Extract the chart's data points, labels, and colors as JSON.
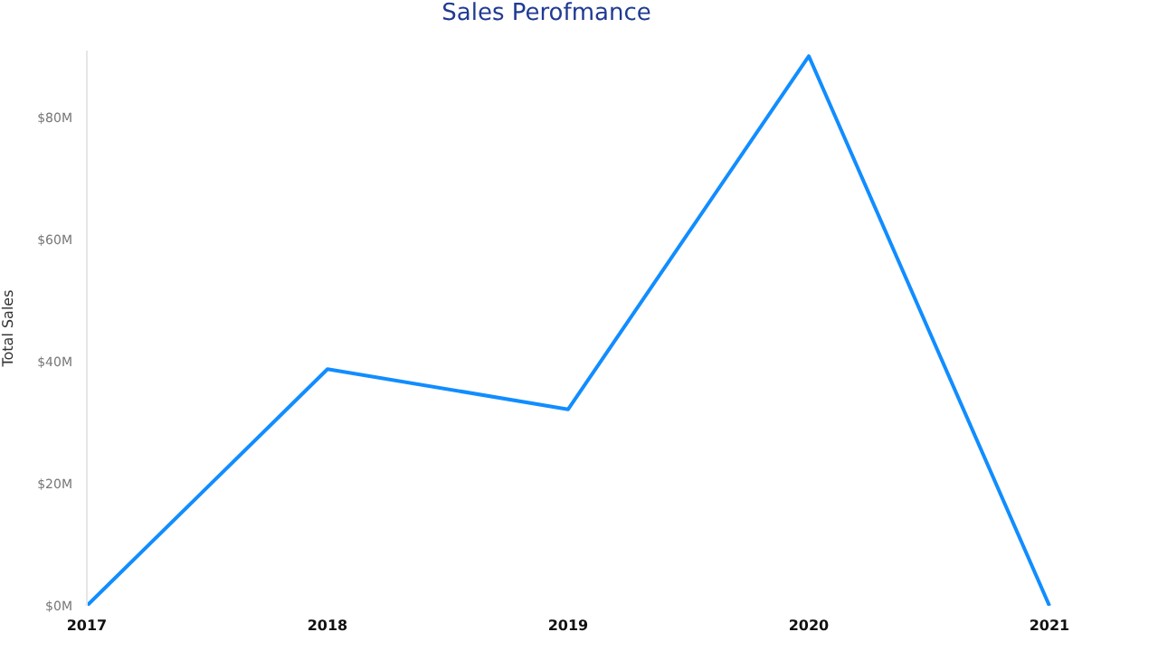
{
  "chart_data": {
    "type": "line",
    "title": "Sales Perofmance",
    "ylabel": "Total Sales",
    "categories": [
      "2017",
      "2018",
      "2019",
      "2020",
      "2021"
    ],
    "series": [
      {
        "color": "#118dff",
        "values": [
          0,
          38.8,
          32.2,
          90.1,
          0
        ]
      }
    ],
    "ylim": [
      0,
      91
    ],
    "yticks": [
      {
        "value": 0,
        "label": "$0M"
      },
      {
        "value": 20,
        "label": "$20M"
      },
      {
        "value": 40,
        "label": "$40M"
      },
      {
        "value": 60,
        "label": "$60M"
      },
      {
        "value": 80,
        "label": "$80M"
      }
    ],
    "grid": false,
    "legend": false,
    "marker": "none",
    "line_style": "solid"
  }
}
